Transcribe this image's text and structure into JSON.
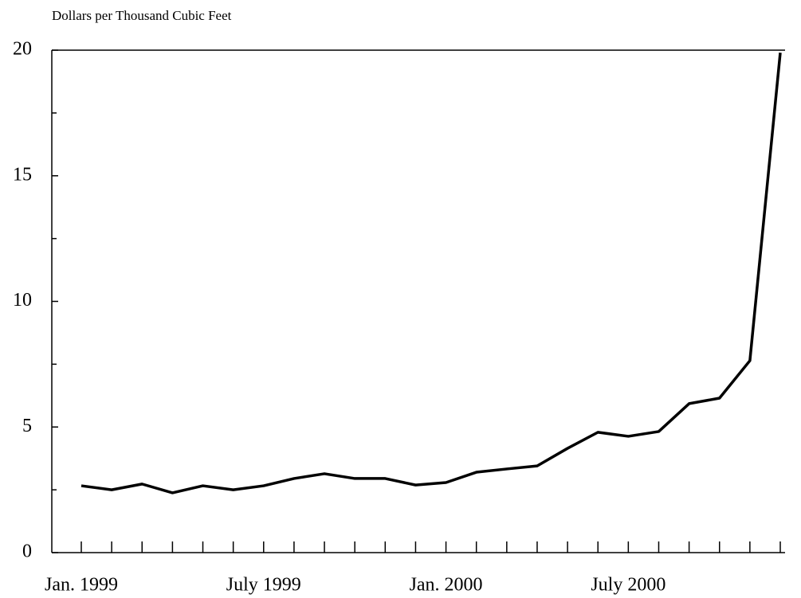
{
  "chart_data": {
    "type": "line",
    "title": "Dollars per Thousand Cubic Feet",
    "categories": [
      "Jan. 1999",
      null,
      null,
      null,
      null,
      null,
      "July 1999",
      null,
      null,
      null,
      null,
      null,
      "Jan. 2000",
      null,
      null,
      null,
      null,
      null,
      "July 2000",
      null,
      null,
      null,
      null,
      null
    ],
    "values": [
      2.66,
      2.5,
      2.73,
      2.38,
      2.66,
      2.5,
      2.66,
      2.95,
      3.14,
      2.95,
      2.95,
      2.69,
      2.79,
      3.2,
      3.33,
      3.45,
      4.15,
      4.79,
      4.63,
      4.82,
      5.93,
      6.15,
      7.64,
      19.9
    ],
    "color": "#000000",
    "ylim": [
      0,
      20
    ],
    "yticks": [
      0,
      5,
      10,
      15,
      20
    ],
    "yminorticks": [
      2.5,
      7.5,
      12.5,
      17.5
    ],
    "grid": false
  }
}
